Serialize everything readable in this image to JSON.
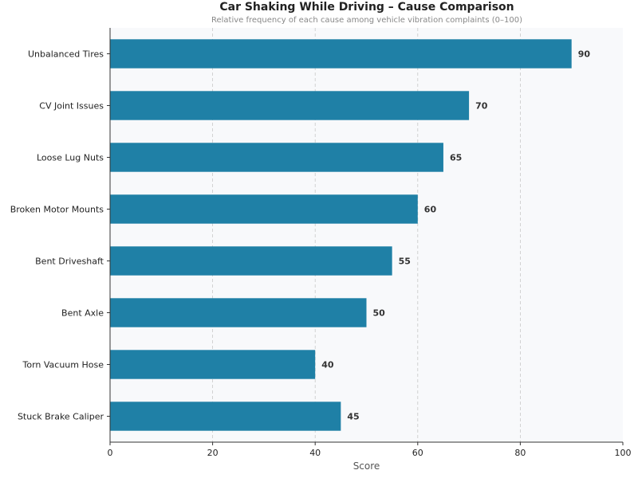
{
  "chart_data": {
    "type": "bar",
    "orientation": "horizontal",
    "title": "Car Shaking While Driving – Cause Comparison",
    "subtitle": "Relative frequency of each cause among vehicle vibration complaints (0–100)",
    "xlabel": "Score",
    "ylabel": "",
    "xlim": [
      0,
      100
    ],
    "xticks": [
      0,
      20,
      40,
      60,
      80,
      100
    ],
    "grid": "vertical dashed",
    "categories": [
      "Unbalanced Tires",
      "CV Joint Issues",
      "Loose Lug Nuts",
      "Broken Motor Mounts",
      "Bent Driveshaft",
      "Bent Axle",
      "Torn Vacuum Hose",
      "Stuck Brake Caliper"
    ],
    "values": [
      90,
      70,
      65,
      60,
      55,
      50,
      40,
      45
    ],
    "bar_color": "#1f80a6",
    "background": "#f8f9fb"
  }
}
